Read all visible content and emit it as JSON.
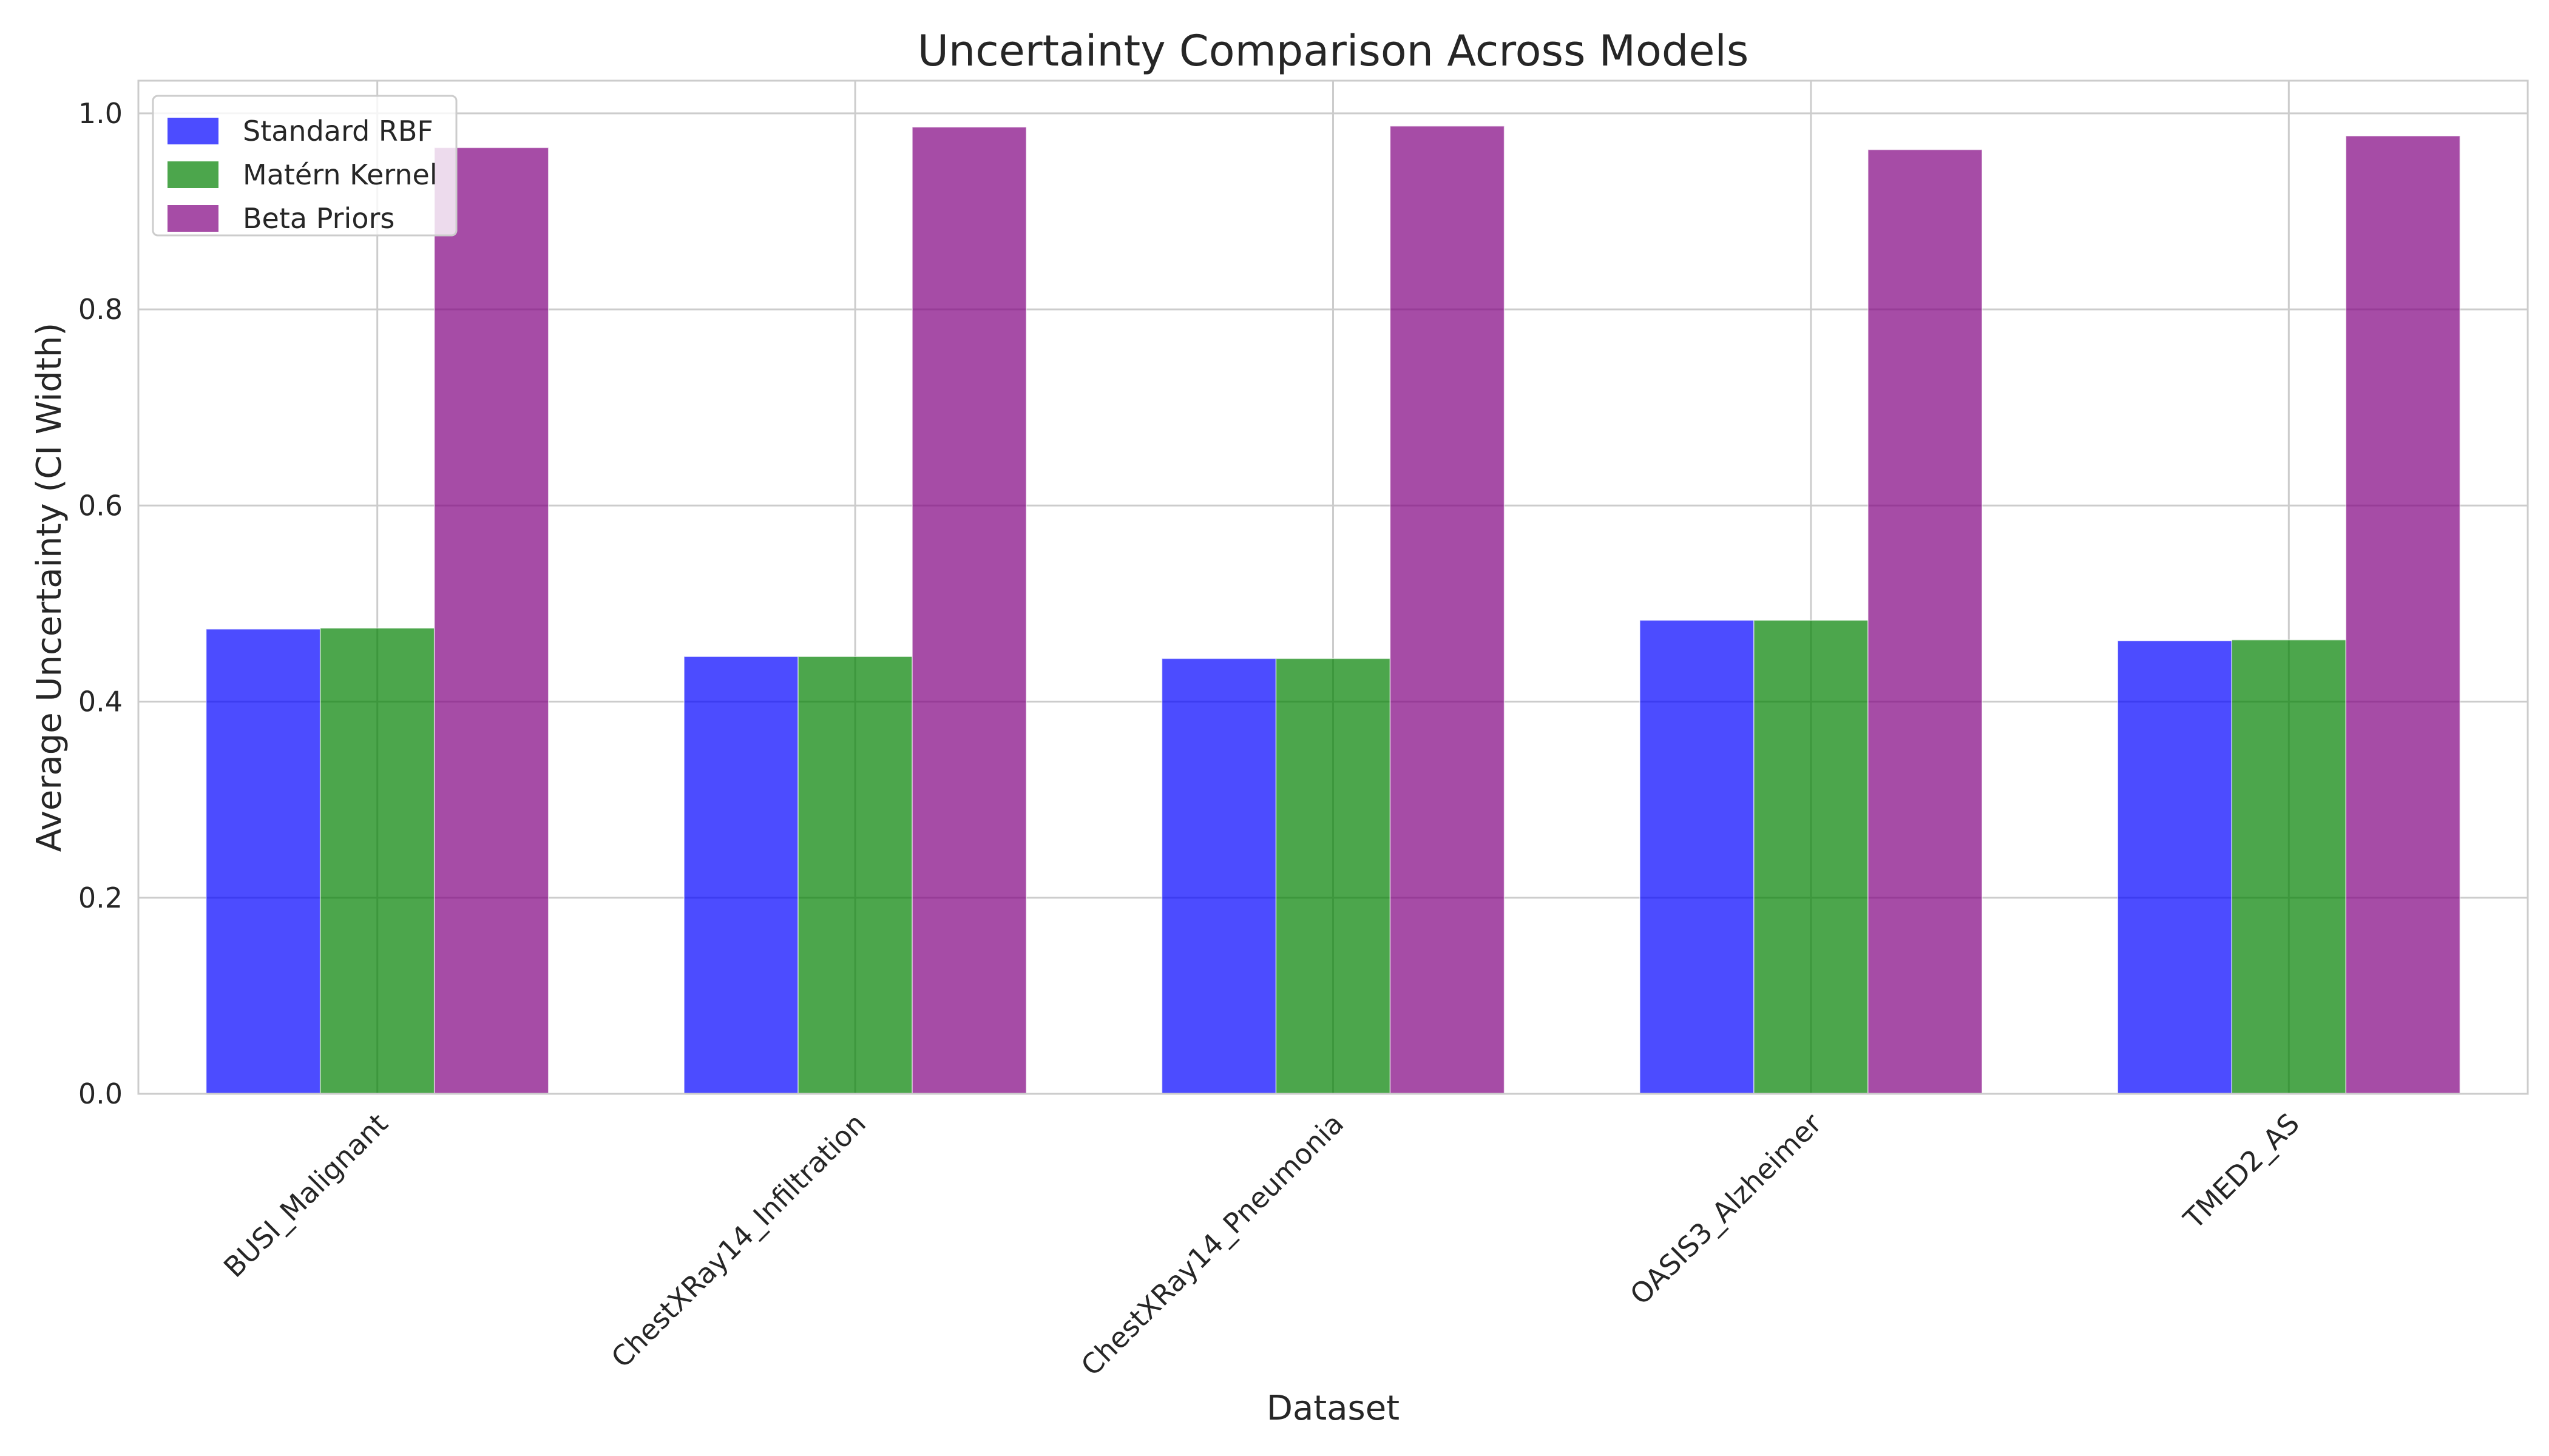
{
  "chart_data": {
    "type": "bar",
    "title": "Uncertainty Comparison Across Models",
    "xlabel": "Dataset",
    "ylabel": "Average Uncertainty (CI Width)",
    "categories": [
      "BUSI_Malignant",
      "ChestXRay14_Infiltration",
      "ChestXRay14_Pneumonia",
      "OASIS3_Alzheimer",
      "TMED2_AS"
    ],
    "series": [
      {
        "name": "Standard RBF",
        "color": "#0000ff",
        "values": [
          0.474,
          0.446,
          0.444,
          0.483,
          0.462
        ]
      },
      {
        "name": "Matérn Kernel",
        "color": "#008000",
        "values": [
          0.475,
          0.446,
          0.444,
          0.483,
          0.463
        ]
      },
      {
        "name": "Beta Priors",
        "color": "#800080",
        "values": [
          0.965,
          0.986,
          0.987,
          0.963,
          0.977
        ]
      }
    ],
    "ylim": [
      0,
      1.0333
    ],
    "yticks": [
      "0.0",
      "0.2",
      "0.4",
      "0.6",
      "0.8",
      "1.0"
    ],
    "ytick_values": [
      0,
      0.2,
      0.4,
      0.6,
      0.8,
      1.0
    ],
    "bar_alpha": 0.7,
    "grid": true,
    "legend_position": "upper-left",
    "x_tick_rotation_deg": 45
  }
}
